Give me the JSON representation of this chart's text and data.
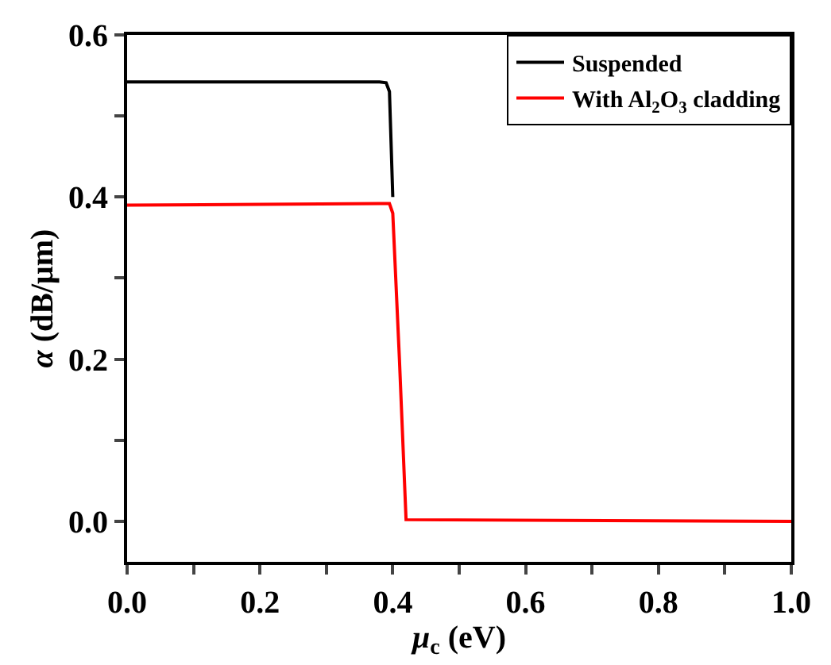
{
  "chart_data": {
    "type": "line",
    "xlabel": "μ$_{c}$ (eV)",
    "ylabel": "α (dB/μm)",
    "xlim": [
      0,
      1
    ],
    "ylim": [
      -0.05,
      0.6
    ],
    "xticks": [
      {
        "value": 0,
        "label": "0.0"
      },
      {
        "value": 0.1,
        "label": null
      },
      {
        "value": 0.2,
        "label": "0.2"
      },
      {
        "value": 0.3,
        "label": null
      },
      {
        "value": 0.4,
        "label": "0.4"
      },
      {
        "value": 0.5,
        "label": null
      },
      {
        "value": 0.6,
        "label": "0.6"
      },
      {
        "value": 0.7,
        "label": null
      },
      {
        "value": 0.8,
        "label": "0.8"
      },
      {
        "value": 0.9,
        "label": null
      },
      {
        "value": 1,
        "label": "1.0"
      }
    ],
    "yticks": [
      {
        "value": 0,
        "label": "0.0"
      },
      {
        "value": 0.1,
        "label": null
      },
      {
        "value": 0.2,
        "label": "0.2"
      },
      {
        "value": 0.3,
        "label": null
      },
      {
        "value": 0.4,
        "label": "0.4"
      },
      {
        "value": 0.5,
        "label": null
      },
      {
        "value": 0.6,
        "label": "0.6"
      }
    ],
    "legend": "top right",
    "marker": "none",
    "line_style": "solid",
    "series": [
      {
        "name": "Suspended",
        "color": "#000000",
        "x": [
          0,
          0.38,
          0.39,
          0.395,
          0.4
        ],
        "values": [
          0.542,
          0.542,
          0.541,
          0.53,
          0.4
        ]
      },
      {
        "name": "With Al$_{2}$O$_{3}$ cladding",
        "color": "#ff0000",
        "x": [
          0,
          0.38,
          0.395,
          0.4,
          0.41,
          0.42,
          1.0
        ],
        "values": [
          0.39,
          0.392,
          0.392,
          0.38,
          0.2,
          0.002,
          0.0
        ]
      }
    ]
  }
}
